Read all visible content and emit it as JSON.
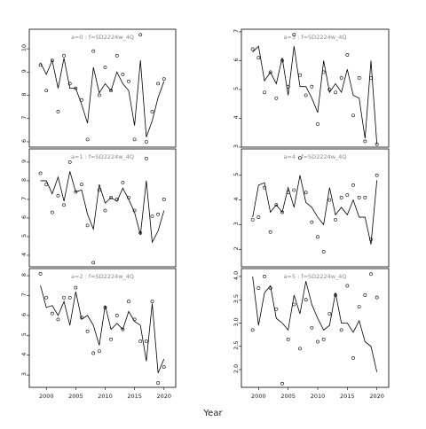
{
  "x_label": "Year",
  "chart_data": [
    {
      "type": "line",
      "title": "a=0  :  f=SD2224w_4Q",
      "x": [
        1999,
        2000,
        2001,
        2002,
        2003,
        2004,
        2005,
        2006,
        2007,
        2008,
        2009,
        2010,
        2011,
        2012,
        2013,
        2014,
        2015,
        2016,
        2017,
        2018,
        2019,
        2020
      ],
      "xlim": [
        1997.1,
        2022
      ],
      "ylim": [
        5.77,
        10.84
      ],
      "yticks": [
        6,
        7,
        8,
        9,
        10
      ],
      "series": [
        {
          "style": "points",
          "color": "#000000",
          "values": [
            9.3,
            8.2,
            9.5,
            7.3,
            9.7,
            8.5,
            8.3,
            7.8,
            6.1,
            9.9,
            8.0,
            9.2,
            8.2,
            9.7,
            8.9,
            8.6,
            6.1,
            10.6,
            6.0,
            7.3,
            8.5,
            8.7
          ]
        },
        {
          "style": "line",
          "color": "#000000",
          "values": [
            9.4,
            8.9,
            9.5,
            8.3,
            9.6,
            8.3,
            8.3,
            7.6,
            6.8,
            9.2,
            8.1,
            8.5,
            8.2,
            9.0,
            8.5,
            8.2,
            6.7,
            9.5,
            6.2,
            6.9,
            7.9,
            8.6
          ]
        }
      ]
    },
    {
      "type": "line",
      "title": "a=3  :  f=SD2224w_4Q",
      "x": [
        1999,
        2000,
        2001,
        2002,
        2003,
        2004,
        2005,
        2006,
        2007,
        2008,
        2009,
        2010,
        2011,
        2012,
        2013,
        2014,
        2015,
        2016,
        2017,
        2018,
        2019,
        2020
      ],
      "xlim": [
        1997.1,
        2022
      ],
      "ylim": [
        3,
        7.09
      ],
      "yticks": [
        3,
        4,
        5,
        6,
        7
      ],
      "series": [
        {
          "style": "points",
          "color": "#000000",
          "values": [
            6.4,
            6.1,
            4.9,
            5.6,
            4.7,
            6.0,
            5.1,
            6.9,
            5.5,
            4.8,
            5.1,
            3.8,
            5.6,
            5.0,
            4.9,
            5.4,
            6.2,
            4.1,
            5.4,
            3.2,
            5.4,
            3.1
          ]
        },
        {
          "style": "line",
          "color": "#000000",
          "values": [
            6.3,
            6.5,
            5.3,
            5.6,
            5.2,
            6.1,
            4.8,
            6.5,
            5.1,
            5.1,
            4.7,
            4.2,
            6.0,
            4.9,
            5.2,
            4.9,
            5.7,
            4.8,
            4.7,
            3.3,
            6.0,
            3.1
          ]
        }
      ]
    },
    {
      "type": "line",
      "title": "a=1  :  f=SD2224w_4Q",
      "x": [
        1999,
        2000,
        2001,
        2002,
        2003,
        2004,
        2005,
        2006,
        2007,
        2008,
        2009,
        2010,
        2011,
        2012,
        2013,
        2014,
        2015,
        2016,
        2017,
        2018,
        2019,
        2020
      ],
      "xlim": [
        1997.1,
        2022
      ],
      "ylim": [
        3.38,
        9.71
      ],
      "yticks": [
        4,
        5,
        6,
        7,
        8,
        9
      ],
      "series": [
        {
          "style": "points",
          "color": "#000000",
          "values": [
            8.4,
            7.8,
            6.3,
            7.2,
            6.7,
            9.0,
            7.4,
            7.8,
            5.6,
            3.6,
            7.5,
            6.4,
            7.1,
            7.0,
            7.9,
            7.1,
            6.4,
            5.2,
            9.2,
            6.1,
            6.2,
            7.0
          ]
        },
        {
          "style": "line",
          "color": "#000000",
          "values": [
            8.0,
            8.0,
            7.3,
            8.2,
            6.9,
            8.5,
            7.4,
            7.5,
            6.2,
            5.4,
            7.8,
            6.8,
            7.1,
            6.9,
            7.6,
            7.0,
            6.3,
            5.1,
            8.0,
            4.7,
            5.3,
            6.4
          ]
        }
      ]
    },
    {
      "type": "line",
      "title": "a=4  :  f=SD2224w_4Q",
      "x": [
        1999,
        2000,
        2001,
        2002,
        2003,
        2004,
        2005,
        2006,
        2007,
        2008,
        2009,
        2010,
        2011,
        2012,
        2013,
        2014,
        2015,
        2016,
        2017,
        2018,
        2019,
        2020
      ],
      "xlim": [
        1997.1,
        2022
      ],
      "ylim": [
        1.29,
        6.07
      ],
      "yticks": [
        2,
        3,
        4,
        5
      ],
      "series": [
        {
          "style": "points",
          "color": "#000000",
          "values": [
            3.2,
            3.3,
            4.5,
            2.7,
            3.8,
            3.5,
            4.3,
            4.4,
            5.7,
            4.3,
            3.1,
            2.5,
            1.9,
            4.0,
            3.2,
            4.1,
            4.2,
            4.6,
            4.1,
            4.1,
            2.4,
            5.0
          ]
        },
        {
          "style": "line",
          "color": "#000000",
          "values": [
            3.3,
            4.6,
            4.7,
            3.5,
            3.8,
            3.5,
            4.5,
            3.7,
            5.0,
            3.9,
            3.7,
            3.3,
            3.0,
            4.5,
            3.4,
            3.7,
            3.4,
            4.0,
            3.3,
            3.3,
            2.2,
            4.8
          ]
        }
      ]
    },
    {
      "type": "line",
      "title": "a=2  :  f=SD2224w_4Q",
      "x": [
        1999,
        2000,
        2001,
        2002,
        2003,
        2004,
        2005,
        2006,
        2007,
        2008,
        2009,
        2010,
        2011,
        2012,
        2013,
        2014,
        2015,
        2016,
        2017,
        2018,
        2019,
        2020
      ],
      "xlim": [
        1997.1,
        2022
      ],
      "ylim": [
        2.38,
        8.36
      ],
      "yticks": [
        3,
        4,
        5,
        6,
        7,
        8
      ],
      "xticks": [
        2000,
        2005,
        2010,
        2015,
        2020
      ],
      "series": [
        {
          "style": "points",
          "color": "#000000",
          "values": [
            8.1,
            6.9,
            6.1,
            5.8,
            6.9,
            6.9,
            7.4,
            5.9,
            5.2,
            4.1,
            4.2,
            6.4,
            4.8,
            6.0,
            5.3,
            6.7,
            5.8,
            4.7,
            4.7,
            6.7,
            2.6,
            3.4
          ]
        },
        {
          "style": "line",
          "color": "#000000",
          "values": [
            7.5,
            6.4,
            6.5,
            6.0,
            6.7,
            5.5,
            7.2,
            5.8,
            6.0,
            5.5,
            4.5,
            6.5,
            5.3,
            5.6,
            5.3,
            6.2,
            5.7,
            5.5,
            3.7,
            6.6,
            3.1,
            3.8
          ]
        }
      ]
    },
    {
      "type": "line",
      "title": "a=5  :  f=SD2224w_4Q",
      "x": [
        1999,
        2000,
        2001,
        2002,
        2003,
        2004,
        2005,
        2006,
        2007,
        2008,
        2009,
        2010,
        2011,
        2012,
        2013,
        2014,
        2015,
        2016,
        2017,
        2018,
        2019,
        2020
      ],
      "xlim": [
        1997.1,
        2022
      ],
      "ylim": [
        1.62,
        4.17
      ],
      "yticks": [
        {
          "value": 2,
          "label": "2.0"
        },
        2.5,
        {
          "value": 3,
          "label": "3.0"
        },
        3.5,
        {
          "value": 4,
          "label": "4.0"
        }
      ],
      "xticks": [
        2000,
        2005,
        2010,
        2015,
        2020
      ],
      "series": [
        {
          "style": "points",
          "color": "#000000",
          "values": [
            2.85,
            3.75,
            4.0,
            3.75,
            3.3,
            1.7,
            2.65,
            3.4,
            2.45,
            3.5,
            2.9,
            2.6,
            2.65,
            3.2,
            3.6,
            2.85,
            3.8,
            2.25,
            3.35,
            3.6,
            4.05,
            3.55
          ]
        },
        {
          "style": "line",
          "color": "#000000",
          "values": [
            4.0,
            2.95,
            3.65,
            3.8,
            3.1,
            3.0,
            2.85,
            3.6,
            3.2,
            3.9,
            3.4,
            3.1,
            2.85,
            2.95,
            3.65,
            3.0,
            3.0,
            2.8,
            3.05,
            2.6,
            2.5,
            1.95
          ]
        }
      ]
    }
  ]
}
